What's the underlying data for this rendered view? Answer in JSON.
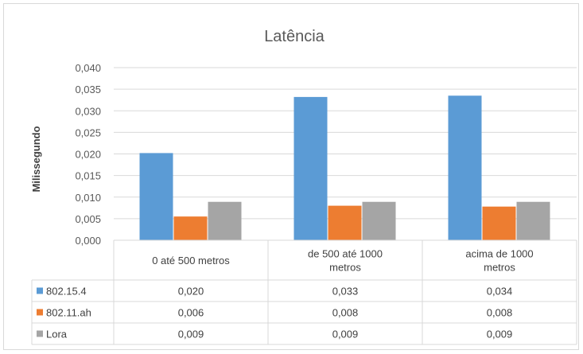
{
  "chart_data": {
    "type": "bar",
    "title": "Latência",
    "ylabel": "Milissegundo",
    "ylim": [
      0,
      0.04
    ],
    "ytick_step": 0.005,
    "yticks": [
      "0,000",
      "0,005",
      "0,010",
      "0,015",
      "0,020",
      "0,025",
      "0,030",
      "0,035",
      "0,040"
    ],
    "grid": true,
    "legend_placement": "data-table-left",
    "categories": [
      [
        "0 até 500 metros"
      ],
      [
        "de 500 até 1000",
        "metros"
      ],
      [
        "acima de 1000",
        "metros"
      ]
    ],
    "series": [
      {
        "name": "802.15.4",
        "color": "#5b9bd5",
        "values": [
          0.0202,
          0.0332,
          0.0335
        ],
        "labels": [
          "0,020",
          "0,033",
          "0,034"
        ]
      },
      {
        "name": "802.11.ah",
        "color": "#ed7d31",
        "values": [
          0.0055,
          0.008,
          0.0078
        ],
        "labels": [
          "0,006",
          "0,008",
          "0,008"
        ]
      },
      {
        "name": "Lora",
        "color": "#a5a5a5",
        "values": [
          0.0089,
          0.0089,
          0.0089
        ],
        "labels": [
          "0,009",
          "0,009",
          "0,009"
        ]
      }
    ]
  }
}
